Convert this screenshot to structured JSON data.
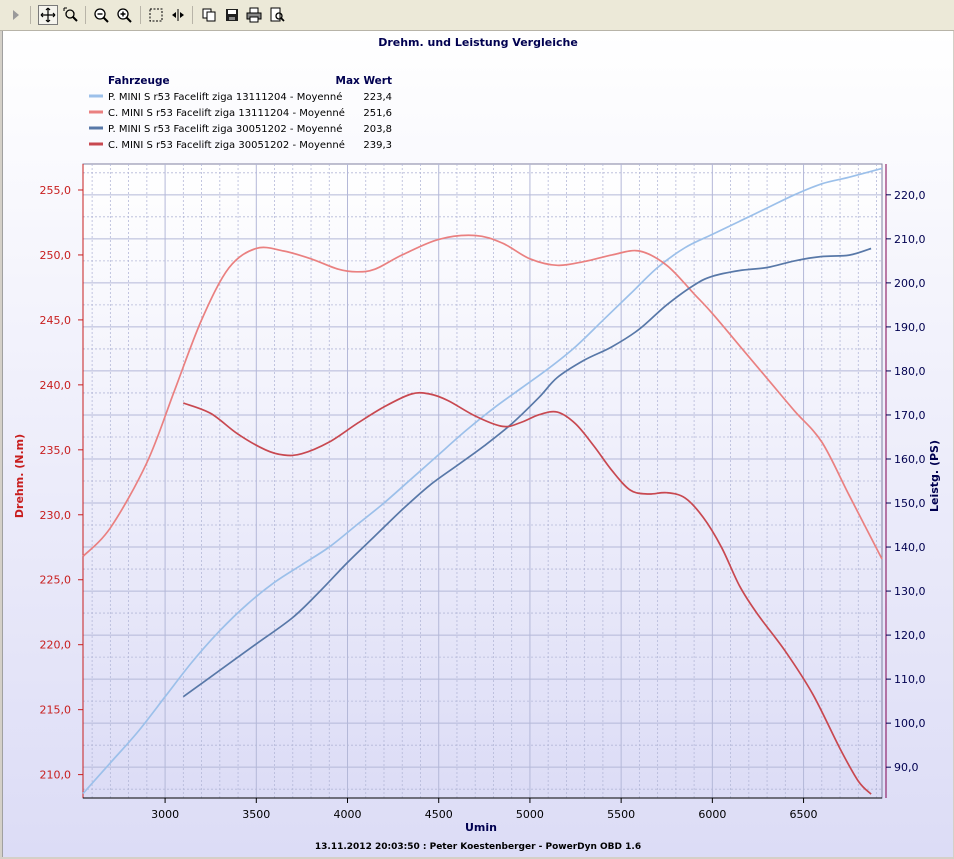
{
  "toolbar": {
    "buttons": [
      {
        "name": "play-arrow-icon",
        "active": false
      },
      {
        "name": "pan-move-icon",
        "active": true
      },
      {
        "name": "zoom-box-icon",
        "active": false
      },
      {
        "name": "zoom-out-icon",
        "active": false
      },
      {
        "name": "zoom-in-icon",
        "active": false
      },
      {
        "name": "select-rect-icon",
        "active": false
      },
      {
        "name": "fit-width-icon",
        "active": false
      },
      {
        "name": "copy-icon",
        "active": false
      },
      {
        "name": "save-icon",
        "active": false
      },
      {
        "name": "print-icon",
        "active": false
      },
      {
        "name": "print-preview-icon",
        "active": false
      }
    ]
  },
  "chart_data": {
    "type": "line",
    "title": "Drehm. und Leistung Vergleiche",
    "xlabel": "Umin",
    "ylabel_left": "Drehm. (N.m)",
    "ylabel_right": "Leistg. (PS)",
    "footer": "13.11.2012 20:03:50 : Peter Koestenberger - PowerDyn OBD 1.6",
    "legend_header": "Fahrzeuge",
    "legend_value_header": "Max Wert",
    "legend_position": "top-left",
    "xlim": [
      2550,
      6930
    ],
    "ylim_left": [
      208.2,
      257.0
    ],
    "ylim_right": [
      83.0,
      227.0
    ],
    "x_ticks": [
      3000,
      3500,
      4000,
      4500,
      5000,
      5500,
      6000,
      6500
    ],
    "y_ticks_left": [
      "210,0",
      "215,0",
      "220,0",
      "225,0",
      "230,0",
      "235,0",
      "240,0",
      "245,0",
      "250,0",
      "255,0"
    ],
    "y_ticks_left_values": [
      210,
      215,
      220,
      225,
      230,
      235,
      240,
      245,
      250,
      255
    ],
    "y_ticks_right": [
      "90,0",
      "100,0",
      "110,0",
      "120,0",
      "130,0",
      "140,0",
      "150,0",
      "160,0",
      "170,0",
      "180,0",
      "190,0",
      "200,0",
      "210,0",
      "220,0"
    ],
    "y_ticks_right_values": [
      90,
      100,
      110,
      120,
      130,
      140,
      150,
      160,
      170,
      180,
      190,
      200,
      210,
      220
    ],
    "grid": true,
    "colors": {
      "plot_bg_top": "#ffffff",
      "plot_bg_bottom": "#dcdcf6",
      "grid": "#b4b8d8",
      "left_axis_text": "#c81e1e",
      "title_text": "#000050"
    },
    "series": [
      {
        "name": "P. MINI S r53 Facelift ziga 13111204 - Moyenné",
        "max": "223,4",
        "axis": "right",
        "color": "#9cc0ea",
        "x": [
          2550,
          2700,
          2850,
          3000,
          3150,
          3300,
          3450,
          3600,
          3750,
          3900,
          4050,
          4200,
          4350,
          4500,
          4650,
          4800,
          4950,
          5100,
          5250,
          5400,
          5550,
          5700,
          5850,
          6000,
          6150,
          6300,
          6450,
          6600,
          6750,
          6930
        ],
        "y": [
          84,
          91,
          98,
          106,
          114,
          121,
          127,
          132,
          136,
          140,
          145,
          150,
          155.5,
          161,
          166.5,
          171.5,
          176,
          180.5,
          185.5,
          191.5,
          197.5,
          203.5,
          208,
          211,
          214,
          217,
          220,
          222.5,
          224,
          226
        ]
      },
      {
        "name": "C. MINI S r53 Facelift ziga 13111204 - Moyenné",
        "max": "251,6",
        "axis": "left",
        "color": "#ea8080",
        "x": [
          2550,
          2700,
          2900,
          3050,
          3200,
          3350,
          3500,
          3650,
          3800,
          3950,
          4050,
          4150,
          4300,
          4500,
          4700,
          4850,
          5000,
          5150,
          5300,
          5450,
          5600,
          5750,
          5900,
          6000,
          6150,
          6300,
          6450,
          6600,
          6750,
          6930
        ],
        "y": [
          226.8,
          229,
          234,
          239.5,
          245,
          249,
          250.5,
          250.3,
          249.7,
          248.9,
          248.7,
          248.9,
          250,
          251.2,
          251.5,
          250.9,
          249.7,
          249.2,
          249.5,
          250,
          250.3,
          249.2,
          247,
          245.5,
          243,
          240.5,
          238,
          235.6,
          231.5,
          226.6
        ]
      },
      {
        "name": "P. MINI S r53 Facelift ziga 30051202 - Moyenné",
        "max": "203,8",
        "axis": "right",
        "color": "#5878a8",
        "x": [
          3100,
          3300,
          3500,
          3700,
          3850,
          4000,
          4150,
          4300,
          4450,
          4600,
          4750,
          4900,
          5050,
          5150,
          5300,
          5450,
          5600,
          5750,
          5900,
          6000,
          6150,
          6300,
          6450,
          6600,
          6750,
          6870
        ],
        "y": [
          106,
          112,
          118,
          124,
          130,
          136.5,
          142.5,
          148.5,
          154,
          158.5,
          163,
          168,
          174,
          178.5,
          182.5,
          185.5,
          189.5,
          195,
          199.5,
          201.5,
          202.8,
          203.5,
          205,
          206,
          206.3,
          207.8
        ]
      },
      {
        "name": "C. MINI S r53 Facelift ziga 30051202 - Moyenné",
        "max": "239,3",
        "axis": "left",
        "color": "#c84850",
        "x": [
          3100,
          3250,
          3400,
          3550,
          3650,
          3750,
          3900,
          4050,
          4200,
          4350,
          4450,
          4550,
          4700,
          4850,
          4950,
          5050,
          5150,
          5250,
          5350,
          5450,
          5550,
          5650,
          5750,
          5850,
          5950,
          6050,
          6150,
          6250,
          6400,
          6550,
          6700,
          6800,
          6870
        ],
        "y": [
          238.6,
          237.8,
          236.2,
          235,
          234.6,
          234.7,
          235.6,
          237,
          238.3,
          239.3,
          239.3,
          238.8,
          237.6,
          236.8,
          237.1,
          237.7,
          237.9,
          237,
          235.3,
          233.4,
          231.9,
          231.6,
          231.7,
          231.3,
          229.8,
          227.5,
          224.5,
          222.3,
          219.5,
          216.2,
          212,
          209.5,
          208.5
        ]
      }
    ]
  }
}
